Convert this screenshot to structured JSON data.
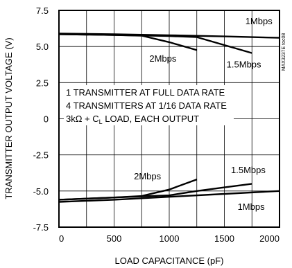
{
  "chart_data": {
    "type": "line",
    "xlabel": "LOAD CAPACITANCE (pF)",
    "ylabel": "TRANSMITTER OUTPUT VOLTAGE (V)",
    "xlim": [
      0,
      2000
    ],
    "ylim": [
      -7.5,
      7.5
    ],
    "x_ticks": [
      "0",
      "500",
      "1000",
      "1500",
      "2000"
    ],
    "y_ticks": [
      "7.5",
      "5.0",
      "2.5",
      "0",
      "-2.5",
      "-5.0",
      "-7.5"
    ],
    "grid": true,
    "series": [
      {
        "name": "1Mbps",
        "x": [
          0,
          500,
          1000,
          1500,
          2000
        ],
        "y": [
          5.9,
          5.85,
          5.78,
          5.7,
          5.6
        ]
      },
      {
        "name": "2Mbps",
        "x": [
          0,
          500,
          750,
          1000,
          1250
        ],
        "y": [
          5.85,
          5.8,
          5.75,
          5.3,
          4.75
        ]
      },
      {
        "name": "1.5Mbps",
        "x": [
          0,
          500,
          1000,
          1250,
          1500,
          1750
        ],
        "y": [
          5.85,
          5.8,
          5.72,
          5.65,
          5.1,
          4.55
        ]
      },
      {
        "name": "1Mbps",
        "x": [
          0,
          500,
          1000,
          1500,
          2000
        ],
        "y": [
          -5.75,
          -5.6,
          -5.4,
          -5.2,
          -5.0
        ]
      },
      {
        "name": "2Mbps",
        "x": [
          0,
          500,
          750,
          1000,
          1250
        ],
        "y": [
          -5.6,
          -5.45,
          -5.35,
          -4.9,
          -4.2
        ]
      },
      {
        "name": "1.5Mbps",
        "x": [
          0,
          500,
          1000,
          1250,
          1500,
          1750
        ],
        "y": [
          -5.6,
          -5.45,
          -5.3,
          -5.0,
          -4.75,
          -4.5
        ]
      }
    ],
    "annotations": [
      "1 TRANSMITTER AT FULL DATA RATE",
      "4 TRANSMITTERS AT 1/16 DATA RATE",
      "3kΩ + C",
      "L",
      " LOAD, EACH OUTPUT"
    ],
    "side_label": "MAX3237E toc08"
  }
}
